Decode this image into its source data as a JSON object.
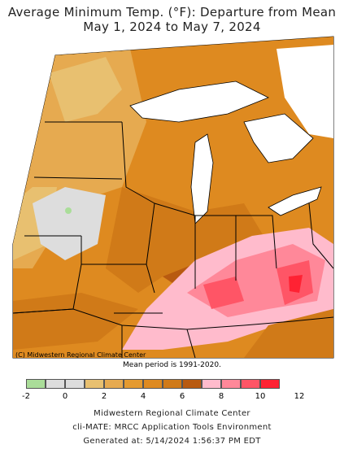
{
  "title_line1": "Average Minimum Temp. (°F): Departure from Mean",
  "title_line2": "May 1, 2024 to May 7, 2024",
  "credit": "(C) Midwestern Regional Climate Center",
  "mean_period": "Mean period is 1991-2020.",
  "legend": {
    "colors": [
      "#aadd99",
      "#dddddd",
      "#dddddd",
      "#e8c070",
      "#e6aa50",
      "#e49a30",
      "#de8a20",
      "#d07a18",
      "#b85a10",
      "#ffbbcc",
      "#ff8899",
      "#ff5566",
      "#ff2233"
    ],
    "ticks": [
      "-2",
      "0",
      "2",
      "4",
      "6",
      "8",
      "10",
      "12"
    ]
  },
  "footer": {
    "line1": "Midwestern Regional Climate Center",
    "line2": "cli-MATE: MRCC Application Tools Environment",
    "line3": "Generated at: 5/14/2024 1:56:37 PM EDT"
  }
}
